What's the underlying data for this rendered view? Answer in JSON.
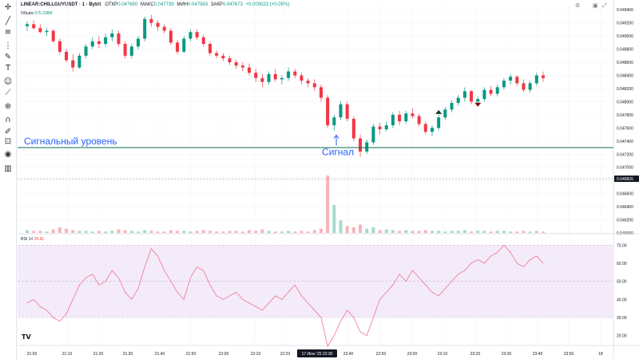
{
  "header": {
    "symbol": "LINEAR:CHILLGUYUSDT · 1 · Bybit",
    "open_label": "ОТКР",
    "open": "0.047650",
    "high_label": "МАКС",
    "high": "0.047739",
    "low_label": "МИН",
    "low": "0.047563",
    "close_label": "ЗАКР",
    "close": "0.047673",
    "change": "+0.000023 (+0.05%)"
  },
  "volume_label": {
    "name": "Объём",
    "value": "575.338M"
  },
  "rsi_label": {
    "name": "RSI 14",
    "value": "20.91"
  },
  "annotations": {
    "signal_level": "Сигнальный уровень",
    "signal": "Сигнал"
  },
  "price_axis_labels": [
    "0.049400",
    "0.049200",
    "0.049000",
    "0.048800",
    "0.048600",
    "0.048400",
    "0.048200",
    "0.048000",
    "0.047800",
    "0.047600",
    "0.047400",
    "0.047200",
    "0.047000",
    "0.046800",
    "0.046600",
    "0.046400",
    "0.046200",
    "0.046000"
  ],
  "current_price_label": "0.046826",
  "rsi_axis_labels": [
    "70.00",
    "60.00",
    "50.00",
    "40.00",
    "30.00",
    "20.00"
  ],
  "time_axis_labels": [
    "21:00",
    "21:10",
    "21:20",
    "21:30",
    "21:40",
    "21:50",
    "22:00",
    "22:10",
    "22:20",
    "22:40",
    "22:50",
    "23:00",
    "23:10",
    "23:20",
    "23:30",
    "23:40",
    "23:50",
    "18"
  ],
  "time_axis_highlight": "17 Июн '25  22:30",
  "logo": "TV",
  "colors": {
    "up": "#089981",
    "down": "#f23645",
    "signal_line": "#0b6e4f",
    "annotation": "#2962ff",
    "rsi_line": "#f2738a",
    "rsi_band": "#f3ebf9"
  },
  "toolbar_icons": [
    "cursor-icon",
    "trendline-icon",
    "fib-icon",
    "brush-icon",
    "pencil-icon",
    "text-icon",
    "smile-icon",
    "ruler-icon",
    "zoom-icon",
    "magnet-icon",
    "lock-draw-icon",
    "lock-icon",
    "eye-icon",
    "trash-icon"
  ],
  "chart_data": [
    {
      "type": "candlestick",
      "series": [
        {
          "name": "LINEAR:CHILLGUYUSDT",
          "candles": [
            [
              0.04915,
              0.04922,
              0.04908,
              0.04918
            ],
            [
              0.04918,
              0.04924,
              0.0491,
              0.04912
            ],
            [
              0.04912,
              0.04918,
              0.04904,
              0.04906
            ],
            [
              0.04906,
              0.04912,
              0.049,
              0.04908
            ],
            [
              0.04908,
              0.0491,
              0.0489,
              0.04892
            ],
            [
              0.04892,
              0.04896,
              0.04872,
              0.04876
            ],
            [
              0.04876,
              0.0488,
              0.0486,
              0.04863
            ],
            [
              0.04863,
              0.04872,
              0.04846,
              0.04852
            ],
            [
              0.04852,
              0.04874,
              0.0485,
              0.0487
            ],
            [
              0.0487,
              0.04888,
              0.04866,
              0.04884
            ],
            [
              0.04884,
              0.04898,
              0.0488,
              0.04892
            ],
            [
              0.04892,
              0.049,
              0.04882,
              0.04888
            ],
            [
              0.04888,
              0.04904,
              0.04884,
              0.04898
            ],
            [
              0.04898,
              0.0491,
              0.04892,
              0.04904
            ],
            [
              0.04904,
              0.04908,
              0.04884,
              0.04888
            ],
            [
              0.04888,
              0.04892,
              0.04866,
              0.0487
            ],
            [
              0.0487,
              0.04888,
              0.04866,
              0.04884
            ],
            [
              0.04884,
              0.049,
              0.0488,
              0.04896
            ],
            [
              0.04896,
              0.0493,
              0.04892,
              0.04926
            ],
            [
              0.04926,
              0.04932,
              0.04914,
              0.0492
            ],
            [
              0.0492,
              0.04924,
              0.04908,
              0.04914
            ],
            [
              0.04914,
              0.04918,
              0.04904,
              0.04908
            ],
            [
              0.04908,
              0.04912,
              0.04886,
              0.0489
            ],
            [
              0.0489,
              0.04894,
              0.04872,
              0.04876
            ],
            [
              0.04876,
              0.049,
              0.04874,
              0.04896
            ],
            [
              0.04896,
              0.0491,
              0.04892,
              0.04906
            ],
            [
              0.04906,
              0.0491,
              0.04894,
              0.04898
            ],
            [
              0.04898,
              0.04902,
              0.04884,
              0.04888
            ],
            [
              0.04888,
              0.04892,
              0.0487,
              0.04874
            ],
            [
              0.04874,
              0.04878,
              0.04866,
              0.0487
            ],
            [
              0.0487,
              0.04874,
              0.04862,
              0.04866
            ],
            [
              0.04866,
              0.0487,
              0.04856,
              0.0486
            ],
            [
              0.0486,
              0.04864,
              0.0485,
              0.04855
            ],
            [
              0.04855,
              0.0486,
              0.04846,
              0.04852
            ],
            [
              0.04852,
              0.04858,
              0.0484,
              0.04844
            ],
            [
              0.04844,
              0.0485,
              0.0483,
              0.04836
            ],
            [
              0.04836,
              0.04842,
              0.04822,
              0.0483
            ],
            [
              0.0483,
              0.04846,
              0.04826,
              0.04842
            ],
            [
              0.04842,
              0.0485,
              0.0483,
              0.04834
            ],
            [
              0.04834,
              0.0484,
              0.04826,
              0.04836
            ],
            [
              0.04836,
              0.04852,
              0.04832,
              0.04846
            ],
            [
              0.04846,
              0.0485,
              0.04836,
              0.0484
            ],
            [
              0.0484,
              0.04844,
              0.04826,
              0.04832
            ],
            [
              0.04832,
              0.04836,
              0.04822,
              0.04828
            ],
            [
              0.04828,
              0.04834,
              0.04816,
              0.04822
            ],
            [
              0.04822,
              0.04826,
              0.048,
              0.04806
            ],
            [
              0.04806,
              0.0481,
              0.0476,
              0.04764
            ],
            [
              0.04764,
              0.0478,
              0.04756,
              0.04776
            ],
            [
              0.04776,
              0.048,
              0.04772,
              0.04796
            ],
            [
              0.04796,
              0.048,
              0.0477,
              0.04774
            ],
            [
              0.04774,
              0.04778,
              0.0474,
              0.04744
            ],
            [
              0.04744,
              0.0475,
              0.04716,
              0.04724
            ],
            [
              0.04724,
              0.04742,
              0.0472,
              0.04738
            ],
            [
              0.04738,
              0.04766,
              0.04734,
              0.04762
            ],
            [
              0.04762,
              0.04768,
              0.0475,
              0.04758
            ],
            [
              0.04758,
              0.0477,
              0.04754,
              0.04764
            ],
            [
              0.04764,
              0.04784,
              0.0476,
              0.0478
            ],
            [
              0.0478,
              0.04786,
              0.04764,
              0.0477
            ],
            [
              0.0477,
              0.04786,
              0.04766,
              0.04782
            ],
            [
              0.04782,
              0.0479,
              0.04774,
              0.04778
            ],
            [
              0.04778,
              0.04782,
              0.04762,
              0.04766
            ],
            [
              0.04766,
              0.0477,
              0.0475,
              0.04754
            ],
            [
              0.04754,
              0.04764,
              0.04748,
              0.0476
            ],
            [
              0.0476,
              0.0478,
              0.04756,
              0.04776
            ],
            [
              0.04776,
              0.04792,
              0.04772,
              0.04788
            ],
            [
              0.04788,
              0.04802,
              0.04784,
              0.04798
            ],
            [
              0.04798,
              0.0481,
              0.04794,
              0.04806
            ],
            [
              0.04806,
              0.04822,
              0.048,
              0.04816
            ],
            [
              0.04816,
              0.04818,
              0.04796,
              0.048
            ],
            [
              0.048,
              0.04808,
              0.04794,
              0.04804
            ],
            [
              0.04804,
              0.04822,
              0.048,
              0.04818
            ],
            [
              0.04818,
              0.04824,
              0.04808,
              0.04812
            ],
            [
              0.04812,
              0.04826,
              0.04808,
              0.04822
            ],
            [
              0.04822,
              0.04836,
              0.04818,
              0.04832
            ],
            [
              0.04832,
              0.04842,
              0.04826,
              0.04838
            ],
            [
              0.04838,
              0.0484,
              0.04824,
              0.04828
            ],
            [
              0.04828,
              0.04834,
              0.04814,
              0.04818
            ],
            [
              0.04818,
              0.04832,
              0.04814,
              0.04828
            ],
            [
              0.04828,
              0.04844,
              0.04824,
              0.0484
            ],
            [
              0.0484,
              0.04846,
              0.0483,
              0.04836
            ]
          ]
        },
        {
          "name": "Объём",
          "values": [
            4,
            3,
            3,
            2,
            5,
            8,
            6,
            4,
            3,
            3,
            2,
            3,
            2,
            3,
            5,
            4,
            3,
            2,
            4,
            3,
            2,
            2,
            4,
            3,
            3,
            2,
            3,
            4,
            3,
            2,
            2,
            3,
            3,
            2,
            4,
            3,
            5,
            3,
            2,
            2,
            3,
            2,
            3,
            2,
            4,
            6,
            82,
            40,
            18,
            10,
            8,
            12,
            6,
            8,
            4,
            5,
            4,
            3,
            4,
            3,
            3,
            4,
            3,
            3,
            2,
            3,
            3,
            4,
            2,
            3,
            3,
            2,
            3,
            3,
            2,
            2,
            3,
            2,
            3,
            2
          ]
        },
        {
          "name": "RSI 14",
          "values": [
            38,
            40,
            36,
            34,
            30,
            28,
            32,
            40,
            48,
            52,
            54,
            48,
            50,
            56,
            52,
            44,
            40,
            46,
            58,
            68,
            64,
            56,
            50,
            44,
            40,
            52,
            58,
            56,
            48,
            42,
            40,
            42,
            44,
            40,
            38,
            36,
            34,
            38,
            42,
            40,
            44,
            48,
            42,
            38,
            34,
            30,
            14,
            20,
            28,
            34,
            30,
            22,
            20,
            30,
            40,
            44,
            48,
            54,
            50,
            56,
            52,
            48,
            44,
            42,
            46,
            50,
            54,
            56,
            60,
            62,
            60,
            64,
            66,
            70,
            66,
            60,
            58,
            62,
            64,
            60
          ]
        }
      ],
      "ylim": [
        0.046,
        0.0495
      ],
      "rsi_ylim": [
        20,
        70
      ],
      "horizontal_lines": [
        {
          "label": "Сигнальный уровень",
          "value": 0.0473
        }
      ],
      "markers": [
        {
          "label": "Сигнал",
          "index": 51
        }
      ],
      "grid": true
    }
  ]
}
